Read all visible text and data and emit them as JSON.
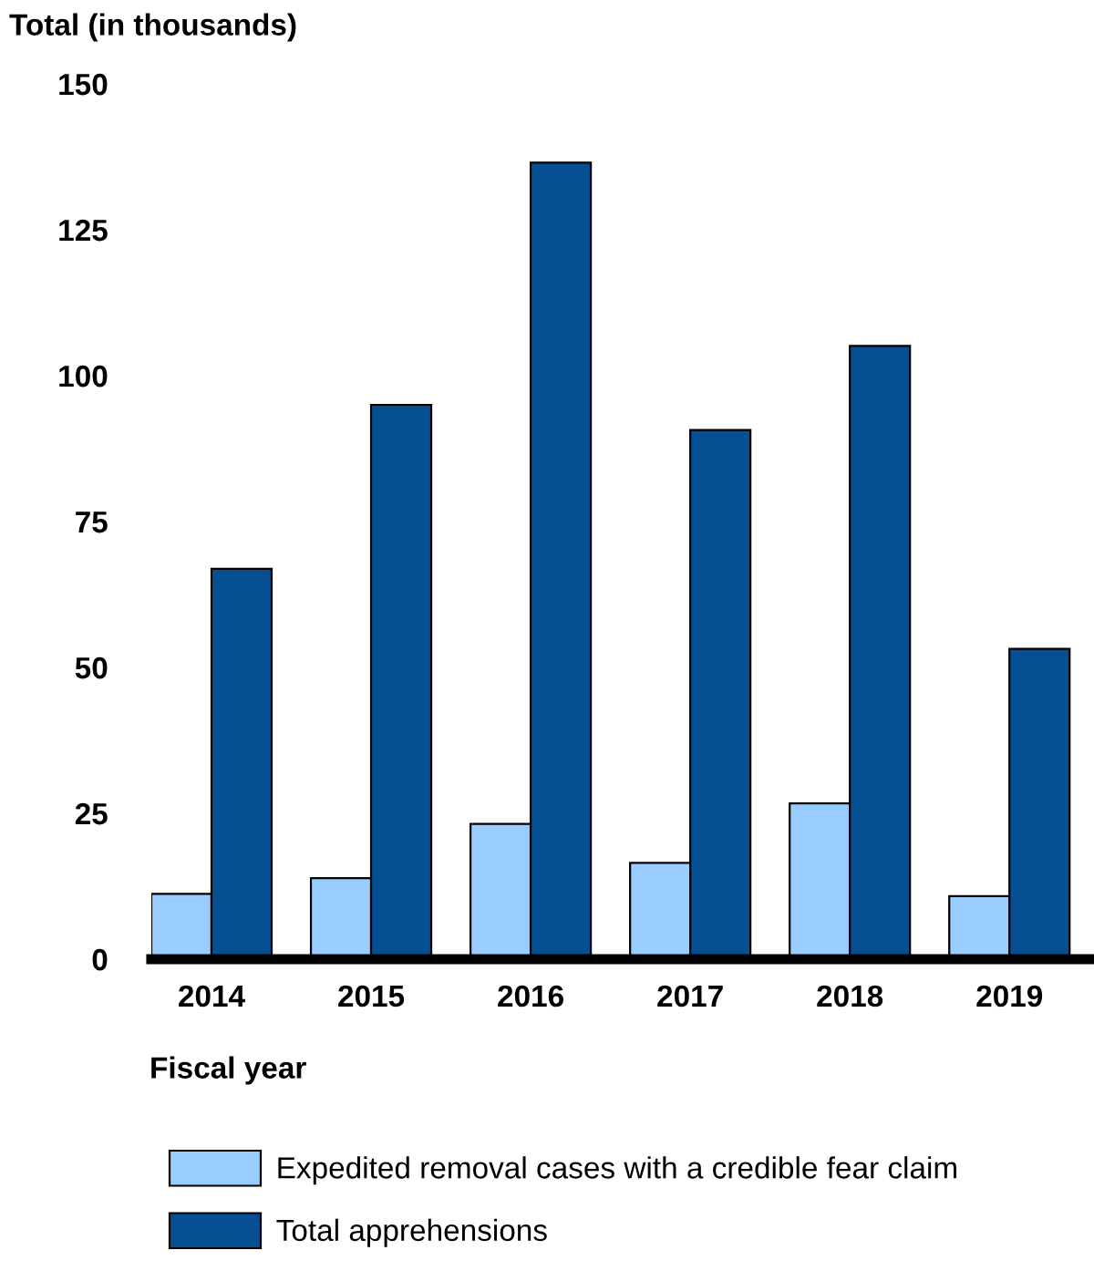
{
  "chart_data": {
    "type": "bar",
    "ylabel": "Total (in thousands)",
    "xlabel": "Fiscal year",
    "categories": [
      "2014",
      "2015",
      "2016",
      "2017",
      "2018",
      "2019"
    ],
    "series": [
      {
        "name": "Expedited removal cases with a credible fear claim",
        "color": "#99ccff",
        "values": [
          11.2,
          13.9,
          23.2,
          16.5,
          26.7,
          10.8
        ]
      },
      {
        "name": "Total apprehensions",
        "color": "#054f92",
        "values": [
          66.9,
          95.0,
          136.5,
          90.7,
          105.1,
          53.2
        ]
      }
    ],
    "ylim": [
      0,
      150
    ],
    "yticks": [
      0,
      25,
      50,
      75,
      100,
      125,
      150
    ],
    "grid": false,
    "legend": "bottom"
  }
}
